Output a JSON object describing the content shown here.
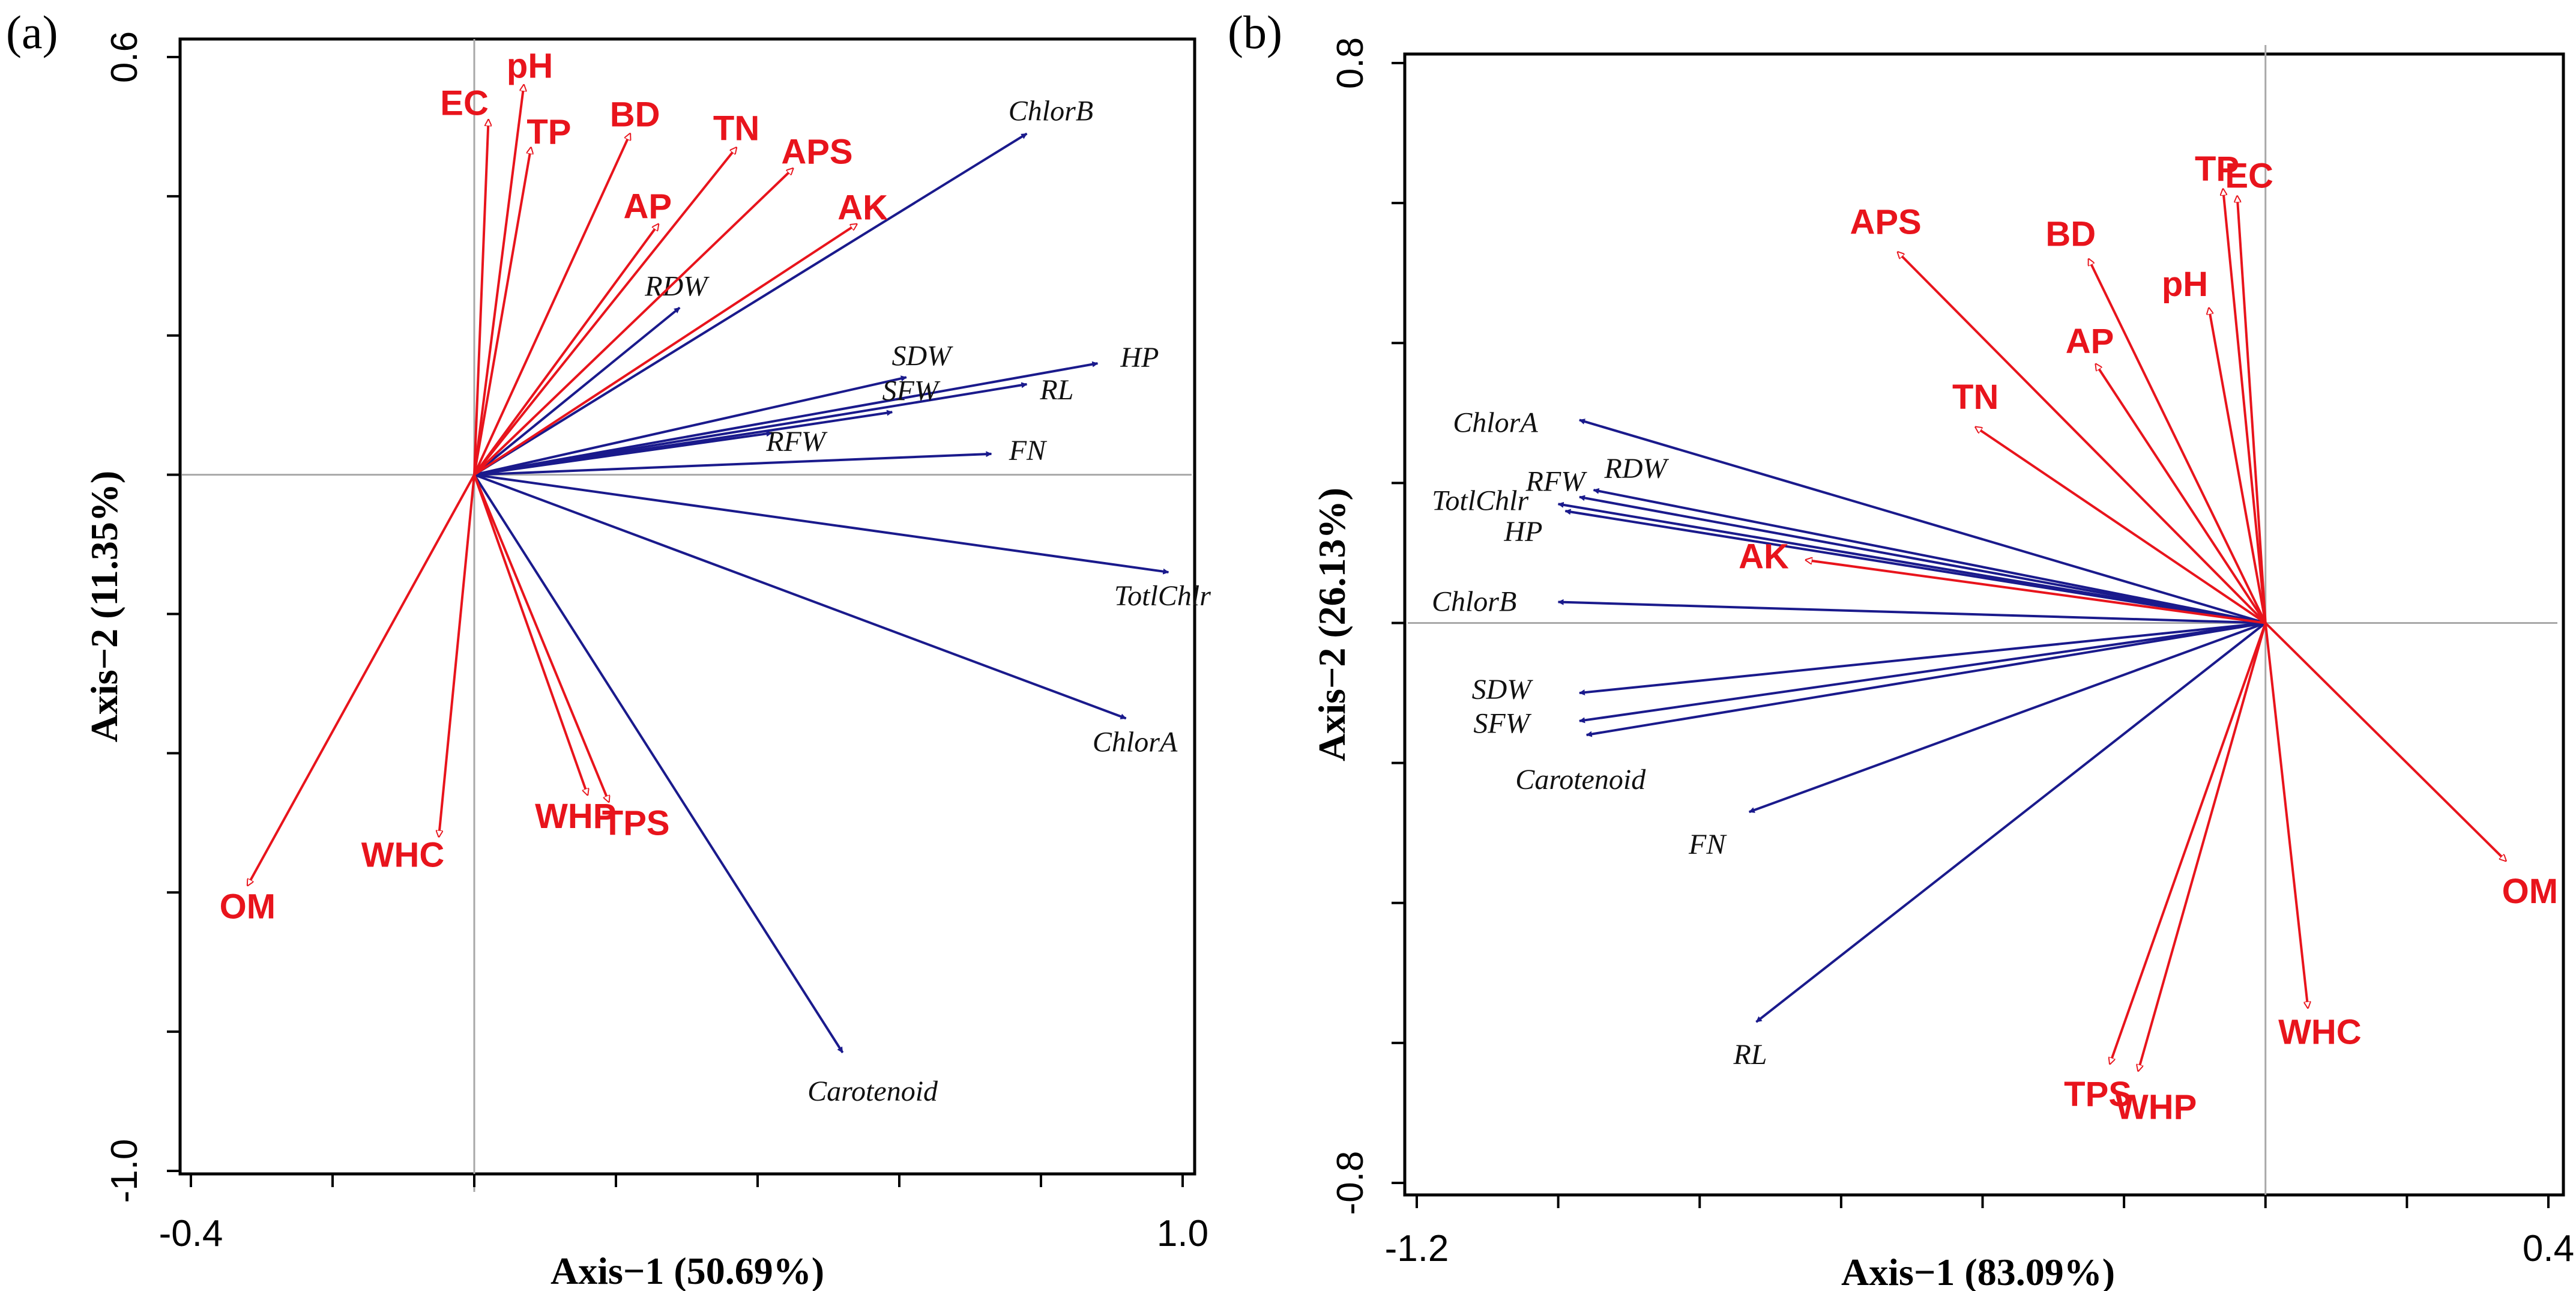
{
  "figure": {
    "background": "#ffffff",
    "env_color": "#e8141c",
    "species_color": "#1a1a8c"
  },
  "chart_data": [
    {
      "type": "biplot",
      "panel_label": "(a)",
      "xlabel": "Axis−1 (50.69%)",
      "ylabel": "Axis−2 (11.35%)",
      "xlim": [
        -0.4,
        1.0
      ],
      "ylim": [
        -1.0,
        0.6
      ],
      "x_tick_labels": [
        {
          "value": -0.4,
          "text": "-0.4"
        },
        {
          "value": 1.0,
          "text": "1.0"
        }
      ],
      "y_tick_labels": [
        {
          "value": 0.6,
          "text": "0.6"
        },
        {
          "value": -1.0,
          "text": "-1.0"
        }
      ],
      "x_minor_ticks": [
        -0.4,
        -0.2,
        0.0,
        0.2,
        0.4,
        0.6,
        0.8,
        1.0
      ],
      "y_minor_ticks": [
        0.6,
        0.4,
        0.2,
        0.0,
        -0.2,
        -0.4,
        -0.6,
        -0.8,
        -1.0
      ],
      "env_arrows": [
        {
          "name": "pH",
          "x": 0.07,
          "y": 0.56
        },
        {
          "name": "EC",
          "x": 0.02,
          "y": 0.51
        },
        {
          "name": "TP",
          "x": 0.08,
          "y": 0.47
        },
        {
          "name": "BD",
          "x": 0.22,
          "y": 0.49
        },
        {
          "name": "TN",
          "x": 0.37,
          "y": 0.47
        },
        {
          "name": "APS",
          "x": 0.45,
          "y": 0.44
        },
        {
          "name": "AP",
          "x": 0.26,
          "y": 0.36
        },
        {
          "name": "AK",
          "x": 0.54,
          "y": 0.36
        },
        {
          "name": "OM",
          "x": -0.32,
          "y": -0.59
        },
        {
          "name": "WHC",
          "x": -0.05,
          "y": -0.52
        },
        {
          "name": "WHP",
          "x": 0.16,
          "y": -0.46
        },
        {
          "name": "TPS",
          "x": 0.19,
          "y": -0.47
        }
      ],
      "species_arrows": [
        {
          "name": "ChlorB",
          "x": 0.78,
          "y": 0.49
        },
        {
          "name": "RDW",
          "x": 0.29,
          "y": 0.24
        },
        {
          "name": "SDW",
          "x": 0.61,
          "y": 0.14
        },
        {
          "name": "HP",
          "x": 0.88,
          "y": 0.16
        },
        {
          "name": "RL",
          "x": 0.78,
          "y": 0.13
        },
        {
          "name": "SFW",
          "x": 0.59,
          "y": 0.09
        },
        {
          "name": "RFW",
          "x": 0.42,
          "y": 0.06
        },
        {
          "name": "FN",
          "x": 0.73,
          "y": 0.03
        },
        {
          "name": "TotlChlr",
          "x": 0.98,
          "y": -0.14
        },
        {
          "name": "ChlorA",
          "x": 0.92,
          "y": -0.35
        },
        {
          "name": "Carotenoid",
          "x": 0.52,
          "y": -0.83
        }
      ]
    },
    {
      "type": "biplot",
      "panel_label": "(b)",
      "xlabel": "Axis−1 (83.09%)",
      "ylabel": "Axis−2 (26.13%)",
      "xlim": [
        -1.2,
        0.4
      ],
      "ylim": [
        -0.8,
        0.8
      ],
      "x_tick_labels": [
        {
          "value": -1.2,
          "text": "-1.2"
        },
        {
          "value": 0.4,
          "text": "0.4"
        }
      ],
      "y_tick_labels": [
        {
          "value": 0.8,
          "text": "0.8"
        },
        {
          "value": -0.8,
          "text": "-0.8"
        }
      ],
      "x_minor_ticks": [
        -1.2,
        -1.0,
        -0.8,
        -0.6,
        -0.4,
        -0.2,
        0.0,
        0.2,
        0.4
      ],
      "y_minor_ticks": [
        0.8,
        0.6,
        0.4,
        0.2,
        0.0,
        -0.2,
        -0.4,
        -0.6,
        -0.8
      ],
      "env_arrows": [
        {
          "name": "TP",
          "x": -0.06,
          "y": 0.62
        },
        {
          "name": "EC",
          "x": -0.04,
          "y": 0.61
        },
        {
          "name": "APS",
          "x": -0.52,
          "y": 0.53
        },
        {
          "name": "BD",
          "x": -0.25,
          "y": 0.52
        },
        {
          "name": "pH",
          "x": -0.08,
          "y": 0.45
        },
        {
          "name": "AP",
          "x": -0.24,
          "y": 0.37
        },
        {
          "name": "TN",
          "x": -0.41,
          "y": 0.28
        },
        {
          "name": "AK",
          "x": -0.65,
          "y": 0.09
        },
        {
          "name": "OM",
          "x": 0.34,
          "y": -0.34
        },
        {
          "name": "WHC",
          "x": 0.06,
          "y": -0.55
        },
        {
          "name": "TPS",
          "x": -0.22,
          "y": -0.63
        },
        {
          "name": "WHP",
          "x": -0.18,
          "y": -0.64
        }
      ],
      "species_arrows": [
        {
          "name": "ChlorA",
          "x": -0.97,
          "y": 0.29
        },
        {
          "name": "RDW",
          "x": -0.95,
          "y": 0.19
        },
        {
          "name": "RFW",
          "x": -0.97,
          "y": 0.18
        },
        {
          "name": "TotlChlr",
          "x": -1.0,
          "y": 0.17
        },
        {
          "name": "HP",
          "x": -0.99,
          "y": 0.16
        },
        {
          "name": "ChlorB",
          "x": -1.0,
          "y": 0.03
        },
        {
          "name": "SDW",
          "x": -0.97,
          "y": -0.1
        },
        {
          "name": "SFW",
          "x": -0.97,
          "y": -0.14
        },
        {
          "name": "Carotenoid",
          "x": -0.96,
          "y": -0.16
        },
        {
          "name": "FN",
          "x": -0.73,
          "y": -0.27
        },
        {
          "name": "RL",
          "x": -0.72,
          "y": -0.57
        }
      ]
    }
  ]
}
